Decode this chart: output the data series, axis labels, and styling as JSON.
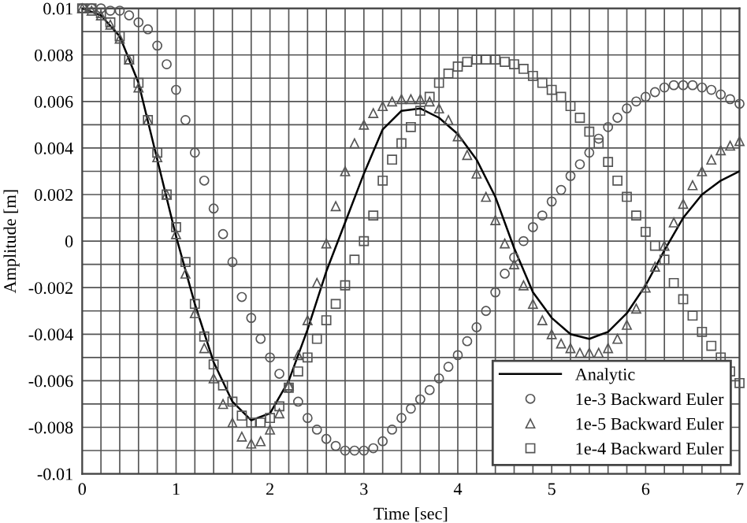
{
  "chart_data": {
    "type": "line",
    "xlabel": "Time [sec]",
    "ylabel": "Amplitude [m]",
    "xlim": [
      0,
      7
    ],
    "ylim": [
      -0.01,
      0.01
    ],
    "xticks": [
      0,
      {
        "value": 0.2,
        "label": null
      },
      {
        "value": 0.4,
        "label": null
      },
      {
        "value": 0.6,
        "label": null
      },
      {
        "value": 0.8,
        "label": null
      },
      1,
      {
        "value": 1.2,
        "label": null
      },
      {
        "value": 1.4,
        "label": null
      },
      {
        "value": 1.6,
        "label": null
      },
      {
        "value": 1.8,
        "label": null
      },
      2,
      {
        "value": 2.2,
        "label": null
      },
      {
        "value": 2.4,
        "label": null
      },
      {
        "value": 2.6,
        "label": null
      },
      {
        "value": 2.8,
        "label": null
      },
      3,
      {
        "value": 3.2,
        "label": null
      },
      {
        "value": 3.4,
        "label": null
      },
      {
        "value": 3.6,
        "label": null
      },
      {
        "value": 3.8,
        "label": null
      },
      4,
      {
        "value": 4.2,
        "label": null
      },
      {
        "value": 4.4,
        "label": null
      },
      {
        "value": 4.6,
        "label": null
      },
      {
        "value": 4.8,
        "label": null
      },
      5,
      {
        "value": 5.2,
        "label": null
      },
      {
        "value": 5.4,
        "label": null
      },
      {
        "value": 5.6,
        "label": null
      },
      {
        "value": 5.8,
        "label": null
      },
      6,
      {
        "value": 6.2,
        "label": null
      },
      {
        "value": 6.4,
        "label": null
      },
      {
        "value": 6.6,
        "label": null
      },
      {
        "value": 6.8,
        "label": null
      },
      7
    ],
    "yticks": [
      -0.01,
      {
        "value": -0.009,
        "label": null
      },
      -0.008,
      {
        "value": -0.007,
        "label": null
      },
      -0.006,
      {
        "value": -0.005,
        "label": null
      },
      -0.004,
      {
        "value": -0.003,
        "label": null
      },
      -0.002,
      {
        "value": -0.001,
        "label": null
      },
      0,
      {
        "value": 0.001,
        "label": null
      },
      0.002,
      {
        "value": 0.003,
        "label": null
      },
      0.004,
      {
        "value": 0.005,
        "label": null
      },
      0.006,
      {
        "value": 0.007,
        "label": null
      },
      0.008,
      {
        "value": 0.009,
        "label": null
      },
      0.01
    ],
    "grid": true,
    "legend": "bottom right",
    "x": [
      0,
      0.1,
      0.2,
      0.3,
      0.4,
      0.5,
      0.6,
      0.7,
      0.8,
      0.9,
      1.0,
      1.1,
      1.2,
      1.3,
      1.4,
      1.5,
      1.6,
      1.7,
      1.8,
      1.9,
      2.0,
      2.1,
      2.2,
      2.3,
      2.4,
      2.5,
      2.6,
      2.7,
      2.8,
      2.9,
      3.0,
      3.1,
      3.2,
      3.3,
      3.4,
      3.5,
      3.6,
      3.7,
      3.8,
      3.9,
      4.0,
      4.1,
      4.2,
      4.3,
      4.4,
      4.5,
      4.6,
      4.7,
      4.8,
      4.9,
      5.0,
      5.1,
      5.2,
      5.3,
      5.4,
      5.5,
      5.6,
      5.7,
      5.8,
      5.9,
      6.0,
      6.1,
      6.2,
      6.3,
      6.4,
      6.5,
      6.6,
      6.7,
      6.8,
      6.9,
      7.0
    ],
    "series": [
      {
        "name": "Analytic",
        "color": "#000000",
        "marker": "none",
        "line_style": "solid",
        "x": [
          0,
          0.2,
          0.4,
          0.6,
          0.8,
          1.0,
          1.2,
          1.4,
          1.6,
          1.8,
          2.0,
          2.2,
          2.4,
          2.6,
          2.8,
          3.0,
          3.2,
          3.4,
          3.6,
          3.8,
          4.0,
          4.2,
          4.4,
          4.6,
          4.8,
          5.0,
          5.2,
          5.4,
          5.6,
          5.8,
          6.0,
          6.2,
          6.4,
          6.6,
          6.8,
          7.0
        ],
        "values": [
          0.01,
          0.0097,
          0.0088,
          0.0068,
          0.0035,
          0.0002,
          -0.0027,
          -0.0052,
          -0.0069,
          -0.0077,
          -0.0074,
          -0.006,
          -0.0038,
          -0.0013,
          0.0008,
          0.0029,
          0.0048,
          0.0056,
          0.0057,
          0.0053,
          0.0046,
          0.0035,
          0.0019,
          -0.0003,
          -0.0022,
          -0.0033,
          -0.004,
          -0.0042,
          -0.0039,
          -0.0031,
          -0.0019,
          -0.0004,
          0.001,
          0.002,
          0.0026,
          0.003
        ]
      },
      {
        "name": "1e-3 Backward Euler",
        "type": "scatter",
        "color": "#555555",
        "marker": "circle",
        "values": [
          0.01,
          0.01,
          0.01,
          0.0099,
          0.0099,
          0.0097,
          0.0094,
          0.0091,
          0.0084,
          0.0076,
          0.0065,
          0.0052,
          0.0038,
          0.0026,
          0.0014,
          0.0003,
          -0.0009,
          -0.0024,
          -0.0033,
          -0.0042,
          -0.005,
          -0.0057,
          -0.0063,
          -0.0069,
          -0.0076,
          -0.0081,
          -0.0085,
          -0.0088,
          -0.009,
          -0.009,
          -0.009,
          -0.0089,
          -0.0086,
          -0.0081,
          -0.0076,
          -0.0072,
          -0.0068,
          -0.0064,
          -0.0059,
          -0.0054,
          -0.0049,
          -0.0043,
          -0.0037,
          -0.003,
          -0.0022,
          -0.0014,
          -0.0007,
          0.0,
          0.0006,
          0.0011,
          0.0017,
          0.0022,
          0.0028,
          0.0033,
          0.0038,
          0.0044,
          0.0049,
          0.0053,
          0.0057,
          0.006,
          0.0062,
          0.0064,
          0.0066,
          0.0067,
          0.0067,
          0.0067,
          0.0066,
          0.0065,
          0.0063,
          0.0061,
          0.0059
        ]
      },
      {
        "name": "1e-5 Backward Euler",
        "type": "scatter",
        "color": "#555555",
        "marker": "triangle",
        "values": [
          0.01,
          0.0099,
          0.0097,
          0.0093,
          0.0087,
          0.0078,
          0.0066,
          0.0052,
          0.0036,
          0.002,
          0.0003,
          -0.0014,
          -0.0031,
          -0.0046,
          -0.0059,
          -0.007,
          -0.0078,
          -0.0084,
          -0.0087,
          -0.0086,
          -0.0081,
          -0.0074,
          -0.0062,
          -0.0049,
          -0.0034,
          -0.0018,
          -0.0001,
          0.0015,
          0.003,
          0.0042,
          0.005,
          0.0055,
          0.0058,
          0.006,
          0.0061,
          0.0061,
          0.0061,
          0.006,
          0.0057,
          0.0052,
          0.0045,
          0.0037,
          0.0029,
          0.0019,
          0.0009,
          -0.0001,
          -0.001,
          -0.0019,
          -0.0027,
          -0.0034,
          -0.004,
          -0.0044,
          -0.0046,
          -0.0048,
          -0.0048,
          -0.0048,
          -0.0046,
          -0.0042,
          -0.0036,
          -0.0029,
          -0.002,
          -0.0011,
          -0.0002,
          0.0008,
          0.0016,
          0.0024,
          0.003,
          0.0035,
          0.0039,
          0.0041,
          0.0043
        ]
      },
      {
        "name": "1e-4 Backward Euler",
        "type": "scatter",
        "color": "#555555",
        "marker": "square",
        "values": [
          0.01,
          0.01,
          0.0098,
          0.0094,
          0.0088,
          0.0078,
          0.0068,
          0.0052,
          0.0038,
          0.002,
          0.0006,
          -0.0009,
          -0.0027,
          -0.0041,
          -0.0053,
          -0.0062,
          -0.0069,
          -0.0075,
          -0.0078,
          -0.0078,
          -0.0076,
          -0.0071,
          -0.0063,
          -0.0056,
          -0.005,
          -0.0042,
          -0.0034,
          -0.0027,
          -0.0019,
          -0.0008,
          0.0,
          0.0011,
          0.0026,
          0.0035,
          0.0042,
          0.0049,
          0.0056,
          0.0062,
          0.0068,
          0.0072,
          0.0075,
          0.0077,
          0.0078,
          0.0078,
          0.0078,
          0.0077,
          0.0076,
          0.0074,
          0.0071,
          0.0068,
          0.0065,
          0.0062,
          0.0058,
          0.0053,
          0.0047,
          0.0042,
          0.0034,
          0.0026,
          0.0019,
          0.0011,
          0.0004,
          -0.0002,
          -0.0008,
          -0.0018,
          -0.0025,
          -0.0032,
          -0.0039,
          -0.0045,
          -0.005,
          -0.0056,
          -0.0061
        ]
      }
    ]
  }
}
